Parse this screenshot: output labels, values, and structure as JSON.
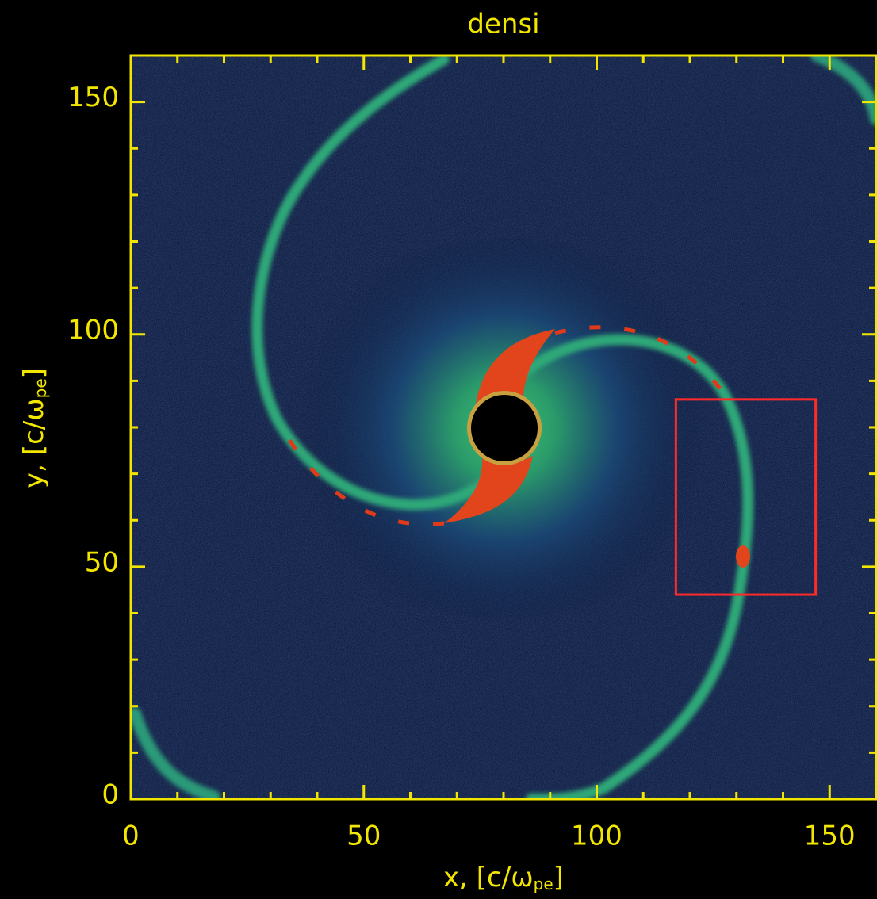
{
  "chart_data": {
    "type": "image",
    "title": "densi",
    "xlabel": [
      "x, [c/ω",
      "pe",
      "]"
    ],
    "ylabel": [
      "y, [c/ω",
      "pe",
      "]"
    ],
    "xlim": [
      0,
      160
    ],
    "ylim": [
      0,
      160
    ],
    "xticks": [
      0,
      50,
      100,
      150
    ],
    "yticks": [
      0,
      50,
      100,
      150
    ],
    "xminorticks": [
      10,
      20,
      30,
      40,
      60,
      70,
      80,
      90,
      110,
      120,
      130,
      140
    ],
    "yminorticks": [
      10,
      20,
      30,
      40,
      60,
      70,
      80,
      90,
      110,
      120,
      130,
      140
    ],
    "axis_color": "#f2e600",
    "box": {
      "x": [
        117,
        147
      ],
      "y": [
        44,
        86
      ],
      "color": "#ff2a2a"
    }
  }
}
